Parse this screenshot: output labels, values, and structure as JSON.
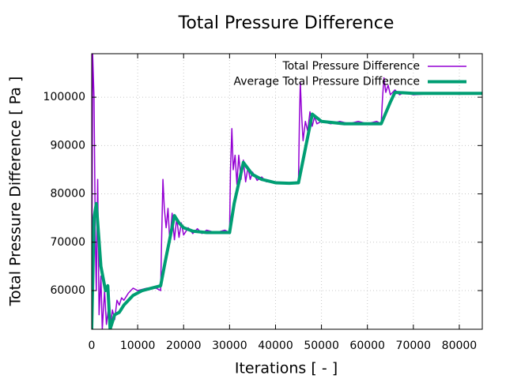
{
  "chart_data": {
    "type": "line",
    "title": "Total Pressure Difference",
    "x_label": "Iterations [ - ]",
    "y_label": "Total Pressure Difference [ Pa ]",
    "xlim": [
      0,
      85000
    ],
    "ylim": [
      52000,
      109000
    ],
    "xticks": [
      0,
      10000,
      20000,
      30000,
      40000,
      50000,
      60000,
      70000,
      80000
    ],
    "yticks": [
      60000,
      70000,
      80000,
      90000,
      100000
    ],
    "grid": true,
    "legend": "top-right",
    "series": [
      {
        "name": "Total Pressure Difference",
        "color": "#9400d3",
        "width": 1.5,
        "x": [
          0,
          200,
          500,
          800,
          1000,
          1300,
          1600,
          2000,
          2300,
          2800,
          3200,
          3600,
          4000,
          4500,
          5000,
          5500,
          6000,
          6500,
          7000,
          8000,
          9000,
          10000,
          12000,
          14000,
          15000,
          15200,
          15500,
          15800,
          16200,
          16600,
          17000,
          17500,
          18000,
          18500,
          19000,
          19500,
          20000,
          21000,
          22000,
          23000,
          24000,
          25000,
          27000,
          29000,
          30000,
          30200,
          30500,
          30800,
          31200,
          31600,
          32000,
          32500,
          33000,
          33500,
          34000,
          34500,
          35000,
          36000,
          37000,
          38000,
          40000,
          42000,
          45000,
          45200,
          45400,
          45700,
          46000,
          46500,
          47000,
          47500,
          48000,
          48500,
          49000,
          50000,
          52000,
          54000,
          56000,
          58000,
          60000,
          62000,
          63000,
          63300,
          63600,
          64000,
          64500,
          65000,
          66000,
          67000,
          68000,
          70000,
          75000,
          80000,
          85000
        ],
        "values": [
          52000,
          109000,
          100000,
          70000,
          60000,
          83000,
          55000,
          63000,
          52000,
          60000,
          53000,
          56000,
          52000,
          56000,
          54000,
          58000,
          57000,
          58500,
          58000,
          59500,
          60500,
          60000,
          60500,
          60500,
          60000,
          70000,
          83000,
          77000,
          73000,
          77000,
          70000,
          76000,
          70500,
          75000,
          71000,
          74000,
          71500,
          73000,
          71800,
          72800,
          71800,
          72500,
          72000,
          72500,
          72000,
          85000,
          93500,
          85000,
          88000,
          82000,
          88000,
          83000,
          87000,
          82500,
          85500,
          83000,
          84500,
          82800,
          83500,
          82500,
          82500,
          82200,
          82500,
          95000,
          103000,
          96000,
          91000,
          95000,
          93000,
          97000,
          94000,
          96000,
          94500,
          95000,
          94500,
          95000,
          94500,
          95000,
          94500,
          95000,
          94500,
          100000,
          104000,
          101000,
          102500,
          100500,
          101500,
          100500,
          101000,
          100500,
          100800,
          100600,
          100800
        ]
      },
      {
        "name": "Average Total Pressure Difference",
        "color": "#009e73",
        "width": 4,
        "x": [
          0,
          500,
          1000,
          2000,
          3000,
          3500,
          4000,
          5000,
          6000,
          7000,
          9000,
          11000,
          13000,
          15000,
          16000,
          18000,
          19000,
          20000,
          22000,
          25000,
          28000,
          30000,
          31000,
          33000,
          35000,
          37000,
          40000,
          43000,
          45000,
          46000,
          48000,
          50000,
          55000,
          60000,
          63000,
          65000,
          66000,
          70000,
          85000
        ],
        "values": [
          52000,
          75000,
          78000,
          65000,
          60000,
          61000,
          52000,
          55000,
          55500,
          57000,
          59000,
          60000,
          60500,
          61000,
          66000,
          75500,
          74000,
          73000,
          72300,
          72000,
          72000,
          72000,
          78000,
          86500,
          84000,
          83000,
          82300,
          82200,
          82300,
          87000,
          96500,
          95000,
          94500,
          94500,
          94500,
          99000,
          101000,
          100800,
          100800
        ]
      }
    ]
  }
}
